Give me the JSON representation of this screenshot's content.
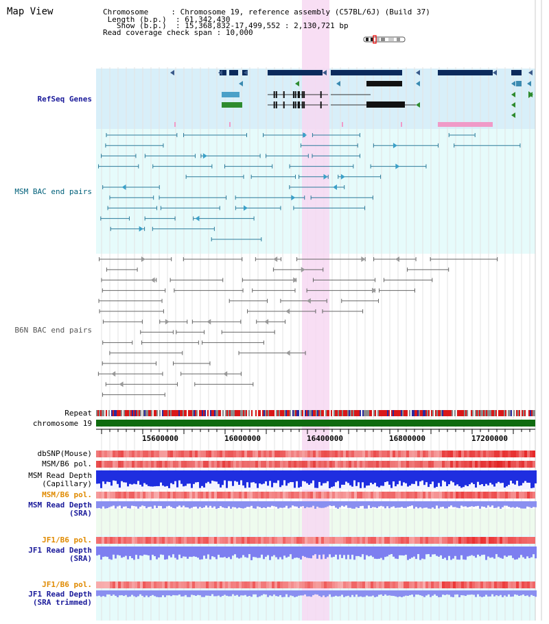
{
  "page_title": "Map View",
  "info": {
    "chromosome_key": "Chromosome",
    "chromosome_value": "Chromosome 19, reference assembly (C57BL/6J) (Build 37)",
    "length_key": "Length (b.p.)",
    "length_value": "61,342,430",
    "show_key": "Show (b.p.)",
    "show_value": "15,368,832-17,499,552 : 2,130,721 bp",
    "coverage_key": "Read coverage check span",
    "coverage_value": "10,000"
  },
  "tracks": {
    "refseq": "RefSeq Genes",
    "msm_bac": "MSM BAC end pairs",
    "b6n_bac": "B6N BAC end pairs",
    "repeat": "Repeat",
    "chrom": "chromosome 19",
    "dbsnp": "dbSNP(Mouse)",
    "msm_pol": "MSM/B6 pol.",
    "msm_depth_cap_1": "MSM Read Depth",
    "msm_depth_cap_2": "(Capillary)",
    "msm_pol2": "MSM/B6 pol.",
    "msm_depth_sra_1": "MSM Read Depth",
    "msm_depth_sra_2": "(SRA)",
    "jf1_pol": "JF1/B6 pol.",
    "jf1_depth_1": "JF1 Read Depth",
    "jf1_depth_2": "(SRA)",
    "jf1_pol2": "JF1/B6 pol.",
    "jf1_trim_1": "JF1 Read Depth",
    "jf1_trim_2": "(SRA trimmed)"
  },
  "ruler": {
    "ticks": [
      "15600000",
      "16000000",
      "16400000",
      "16800000",
      "17200000"
    ]
  },
  "colors": {
    "refseq_bg": "#d8eff9",
    "msm_bg": "#e6fbfb",
    "highlight": "#f7d8f2",
    "gene_dark": "#0b2a5c",
    "chrom_green": "#0f6b0f",
    "label_blue": "#1a1a9a",
    "label_orange": "#e08a00",
    "label_msm": "#00607a"
  }
}
